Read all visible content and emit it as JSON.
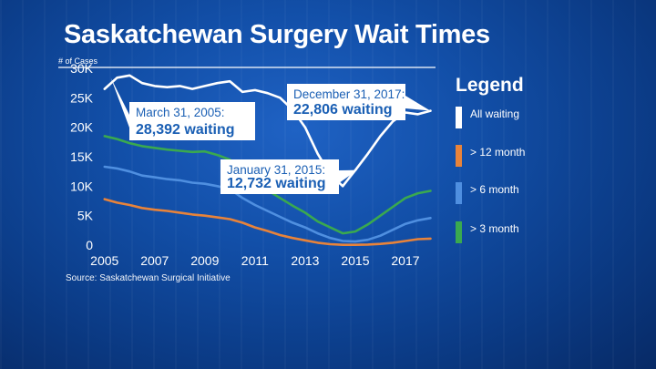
{
  "title": "Saskatchewan Surgery Wait Times",
  "source": "Source: Saskatchewan Surgical Initiative",
  "legend": {
    "title": "Legend",
    "items": [
      {
        "label": "All waiting",
        "color": "#ffffff"
      },
      {
        "label": "> 12 month",
        "color": "#e8833a"
      },
      {
        "label": "> 6 month",
        "color": "#4f8fe0"
      },
      {
        "label": "> 3 month",
        "color": "#3aa94f"
      }
    ]
  },
  "callouts": [
    {
      "date": "March 31, 2005:",
      "value": "28,392 waiting",
      "x": 2005.25,
      "y": 28392
    },
    {
      "date": "January 31, 2015:",
      "value": "12,732 waiting",
      "x": 2015.08,
      "y": 12732
    },
    {
      "date": "December 31, 2017:",
      "value": "22,806 waiting",
      "x": 2017.99,
      "y": 22806
    }
  ],
  "chart_data": {
    "type": "line",
    "ylabel": "# of Cases",
    "xlim": [
      2004.9,
      2018.2
    ],
    "ylim": [
      0,
      30000
    ],
    "x_ticks": [
      {
        "value": 2005,
        "label": "2005"
      },
      {
        "value": 2007,
        "label": "2007"
      },
      {
        "value": 2009,
        "label": "2009"
      },
      {
        "value": 2011,
        "label": "2011"
      },
      {
        "value": 2013,
        "label": "2013"
      },
      {
        "value": 2015,
        "label": "2015"
      },
      {
        "value": 2017,
        "label": "2017"
      }
    ],
    "y_ticks": [
      {
        "value": 0,
        "label": "0"
      },
      {
        "value": 5000,
        "label": "5K"
      },
      {
        "value": 10000,
        "label": "10K"
      },
      {
        "value": 15000,
        "label": "15K"
      },
      {
        "value": 20000,
        "label": "20K"
      },
      {
        "value": 25000,
        "label": "25K"
      },
      {
        "value": 30000,
        "label": "30K"
      }
    ],
    "series": [
      {
        "name": "All waiting",
        "color": "#ffffff",
        "x": [
          2005.0,
          2005.5,
          2006.0,
          2006.5,
          2007.0,
          2007.5,
          2008.0,
          2008.5,
          2009.0,
          2009.5,
          2010.0,
          2010.5,
          2011.0,
          2011.5,
          2012.0,
          2012.5,
          2013.0,
          2013.5,
          2014.0,
          2014.5,
          2015.0,
          2015.5,
          2016.0,
          2016.5,
          2017.0,
          2017.5,
          2018.0
        ],
        "y": [
          26500,
          28400,
          28800,
          27500,
          27000,
          26800,
          27000,
          26500,
          27000,
          27500,
          27800,
          26000,
          26300,
          25800,
          25000,
          23000,
          20000,
          15500,
          12000,
          10000,
          12700,
          15500,
          18500,
          21000,
          22500,
          22200,
          22800
        ]
      },
      {
        "name": "> 12 month",
        "color": "#e8833a",
        "x": [
          2005.0,
          2005.5,
          2006.0,
          2006.5,
          2007.0,
          2007.5,
          2008.0,
          2008.5,
          2009.0,
          2009.5,
          2010.0,
          2010.5,
          2011.0,
          2011.5,
          2012.0,
          2012.5,
          2013.0,
          2013.5,
          2014.0,
          2014.5,
          2015.0,
          2015.5,
          2016.0,
          2016.5,
          2017.0,
          2017.5,
          2018.0
        ],
        "y": [
          7800,
          7200,
          6800,
          6300,
          6000,
          5800,
          5500,
          5200,
          5000,
          4700,
          4400,
          3800,
          3000,
          2400,
          1700,
          1200,
          800,
          400,
          150,
          50,
          50,
          100,
          200,
          400,
          700,
          1000,
          1100
        ]
      },
      {
        "name": "> 6 month",
        "color": "#4f8fe0",
        "x": [
          2005.0,
          2005.5,
          2006.0,
          2006.5,
          2007.0,
          2007.5,
          2008.0,
          2008.5,
          2009.0,
          2009.5,
          2010.0,
          2010.5,
          2011.0,
          2011.5,
          2012.0,
          2012.5,
          2013.0,
          2013.5,
          2014.0,
          2014.5,
          2015.0,
          2015.5,
          2016.0,
          2016.5,
          2017.0,
          2017.5,
          2018.0
        ],
        "y": [
          13300,
          13000,
          12500,
          11800,
          11500,
          11200,
          11000,
          10600,
          10400,
          10000,
          9500,
          8000,
          6800,
          5800,
          4800,
          3800,
          3000,
          2000,
          1200,
          700,
          600,
          900,
          1600,
          2600,
          3600,
          4200,
          4600
        ]
      },
      {
        "name": "> 3 month",
        "color": "#3aa94f",
        "x": [
          2005.0,
          2005.5,
          2006.0,
          2006.5,
          2007.0,
          2007.5,
          2008.0,
          2008.5,
          2009.0,
          2009.5,
          2010.0,
          2010.5,
          2011.0,
          2011.5,
          2012.0,
          2012.5,
          2013.0,
          2013.5,
          2014.0,
          2014.5,
          2015.0,
          2015.5,
          2016.0,
          2016.5,
          2017.0,
          2017.5,
          2018.0
        ],
        "y": [
          18500,
          18000,
          17300,
          16800,
          16500,
          16200,
          16000,
          15800,
          15900,
          15300,
          14500,
          12500,
          10800,
          9300,
          8000,
          6700,
          5500,
          4000,
          3000,
          2000,
          2300,
          3500,
          5000,
          6500,
          8000,
          8800,
          9200
        ]
      }
    ]
  }
}
